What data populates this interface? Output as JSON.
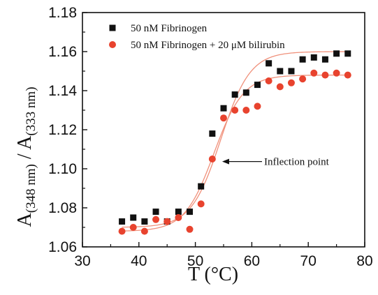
{
  "chart_data": {
    "type": "scatter",
    "title": "",
    "xlabel": "T (°C)",
    "ylabel": {
      "prefix": "A",
      "sub1": "(348 nm)",
      "separator": " / ",
      "prefix2": "A",
      "sub2": "(333 nm)"
    },
    "xlim": [
      30,
      80
    ],
    "ylim": [
      1.06,
      1.18
    ],
    "xticks": [
      "30",
      "40",
      "50",
      "60",
      "70",
      "80"
    ],
    "yticks": [
      "1.06",
      "1.08",
      "1.10",
      "1.12",
      "1.14",
      "1.16",
      "1.18"
    ],
    "xtick_values": [
      30,
      40,
      50,
      60,
      70,
      80
    ],
    "ytick_values": [
      1.06,
      1.08,
      1.1,
      1.12,
      1.14,
      1.16,
      1.18
    ],
    "grid": false,
    "legend_position": "top-left",
    "series": [
      {
        "name": "50 nM Fibrinogen",
        "marker": "square",
        "color": "#111111",
        "x": [
          37,
          39,
          41,
          43,
          45,
          47,
          49,
          51,
          53,
          55,
          57,
          59,
          61,
          63,
          65,
          67,
          69,
          71,
          73,
          75,
          77
        ],
        "y": [
          1.073,
          1.075,
          1.073,
          1.078,
          1.073,
          1.078,
          1.078,
          1.091,
          1.118,
          1.131,
          1.138,
          1.139,
          1.143,
          1.154,
          1.15,
          1.15,
          1.156,
          1.157,
          1.156,
          1.159,
          1.159
        ]
      },
      {
        "name": "50 nM Fibrinogen + 20 μM bilirubin",
        "marker": "circle",
        "color": "#e8432e",
        "x": [
          37,
          39,
          41,
          43,
          45,
          47,
          49,
          51,
          53,
          55,
          57,
          59,
          61,
          63,
          65,
          67,
          69,
          71,
          73,
          75,
          77
        ],
        "y": [
          1.068,
          1.07,
          1.068,
          1.074,
          1.073,
          1.075,
          1.069,
          1.082,
          1.105,
          1.126,
          1.13,
          1.13,
          1.132,
          1.145,
          1.142,
          1.144,
          1.146,
          1.149,
          1.148,
          1.149,
          1.148
        ]
      }
    ],
    "fits": {
      "color": "#f0907a",
      "curves": [
        {
          "series": 0,
          "bottom": 1.07,
          "top": 1.16,
          "x0": 54.5,
          "slope": 2.6
        },
        {
          "series": 1,
          "bottom": 1.068,
          "top": 1.148,
          "x0": 53.3,
          "slope": 2.6
        }
      ]
    },
    "annotations": [
      {
        "text": "Inflection point",
        "x": 54.5,
        "y": 1.1037
      }
    ]
  }
}
